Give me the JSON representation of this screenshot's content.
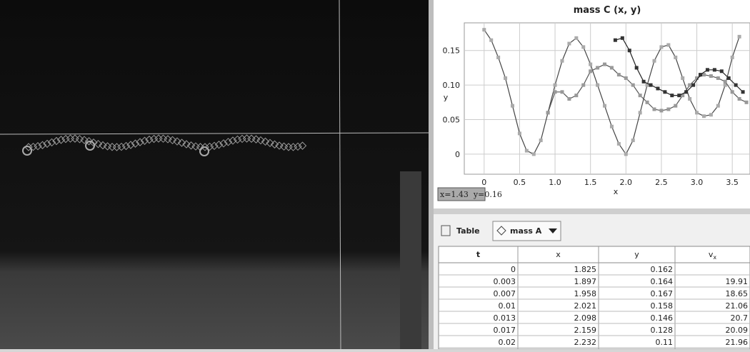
{
  "chart_data": {
    "type": "line",
    "title": "mass C (x, y)",
    "x_label": "x",
    "y_label": "y",
    "xlim": [
      -0.28,
      3.75
    ],
    "ylim": [
      -0.029,
      0.19
    ],
    "xticks": [
      0,
      0.5,
      {
        "value": 1,
        "label": "1.0"
      },
      1.5,
      {
        "value": 2,
        "label": "2.0"
      },
      2.5,
      {
        "value": 3,
        "label": "3.0"
      },
      3.5
    ],
    "yticks": [
      0,
      0.05,
      {
        "value": 0.1,
        "label": "0.10"
      },
      0.15
    ],
    "grid": true,
    "series": [
      {
        "color": "#444444",
        "marker_color": "#aaaaaa",
        "x": [
          0,
          0.1,
          0.2,
          0.3,
          0.4,
          0.5,
          0.6,
          0.7,
          0.8,
          0.9,
          1.0,
          1.1,
          1.2,
          1.3,
          1.4,
          1.5,
          1.6,
          1.7,
          1.8,
          1.9,
          2.0,
          2.1,
          2.2,
          2.3,
          2.4,
          2.5,
          2.6,
          2.7,
          2.8,
          2.9,
          3.0,
          3.1,
          3.2,
          3.3,
          3.4,
          3.5,
          3.6
        ],
        "values": [
          0.18,
          0.165,
          0.14,
          0.11,
          0.07,
          0.03,
          0.005,
          0,
          0.02,
          0.06,
          0.1,
          0.135,
          0.16,
          0.168,
          0.155,
          0.13,
          0.1,
          0.07,
          0.04,
          0.015,
          0,
          0.02,
          0.06,
          0.1,
          0.135,
          0.155,
          0.158,
          0.14,
          0.11,
          0.08,
          0.06,
          0.055,
          0.057,
          0.07,
          0.1,
          0.14,
          0.17
        ]
      },
      {
        "color": "#555555",
        "marker_color": "#999999",
        "x": [
          0.9,
          1.0,
          1.1,
          1.2,
          1.3,
          1.4,
          1.5,
          1.6,
          1.7,
          1.8,
          1.9,
          2.0,
          2.1,
          2.2,
          2.3,
          2.4,
          2.5,
          2.6,
          2.7,
          2.8,
          2.9,
          3.0,
          3.1,
          3.2,
          3.3,
          3.4,
          3.5,
          3.6,
          3.7
        ],
        "values": [
          0.06,
          0.09,
          0.09,
          0.08,
          0.085,
          0.1,
          0.12,
          0.125,
          0.13,
          0.125,
          0.115,
          0.11,
          0.1,
          0.085,
          0.075,
          0.065,
          0.063,
          0.065,
          0.07,
          0.085,
          0.1,
          0.11,
          0.115,
          0.113,
          0.11,
          0.105,
          0.09,
          0.08,
          0.075
        ]
      },
      {
        "color": "#222222",
        "marker_color": "#333333",
        "x": [
          1.85,
          1.95,
          2.05,
          2.15,
          2.25,
          2.35,
          2.45,
          2.55,
          2.65,
          2.75,
          2.85,
          2.95,
          3.05,
          3.15,
          3.25,
          3.35,
          3.45,
          3.55,
          3.65
        ],
        "values": [
          0.165,
          0.168,
          0.15,
          0.125,
          0.105,
          0.1,
          0.095,
          0.09,
          0.085,
          0.085,
          0.09,
          0.1,
          0.115,
          0.122,
          0.122,
          0.12,
          0.11,
          0.1,
          0.09
        ]
      }
    ]
  },
  "readout": "x=1.43  y=0.16",
  "toolbar": {
    "view": "Table",
    "track": "mass A"
  },
  "table": {
    "headers": [
      "t",
      "x",
      "y",
      {
        "main": "v",
        "sub": "x"
      }
    ],
    "rows": [
      [
        "0",
        "1.825",
        "0.162",
        null
      ],
      [
        "0.003",
        "1.897",
        "0.164",
        "19.91"
      ],
      [
        "0.007",
        "1.958",
        "0.167",
        "18.65"
      ],
      [
        "0.01",
        "2.021",
        "0.158",
        "21.06"
      ],
      [
        "0.013",
        "2.098",
        "0.146",
        "20.7"
      ],
      [
        "0.017",
        "2.159",
        "0.128",
        "20.09"
      ],
      [
        "0.02",
        "2.232",
        "0.11",
        "21.96"
      ]
    ]
  }
}
